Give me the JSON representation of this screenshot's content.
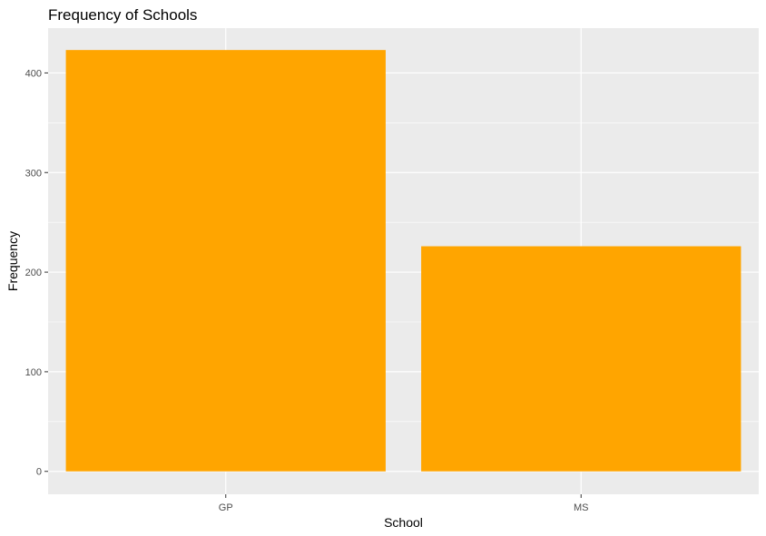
{
  "chart_data": {
    "type": "bar",
    "title": "Frequency of Schools",
    "xlabel": "School",
    "ylabel": "Frequency",
    "categories": [
      "GP",
      "MS"
    ],
    "values": [
      423,
      226
    ],
    "ylim": [
      -23,
      445
    ],
    "yticks": [
      0,
      100,
      200,
      300,
      400
    ],
    "grid": true,
    "bar_color": "#FFA500",
    "panel_color": "#EBEBEB",
    "grid_color": "#FFFFFF"
  }
}
